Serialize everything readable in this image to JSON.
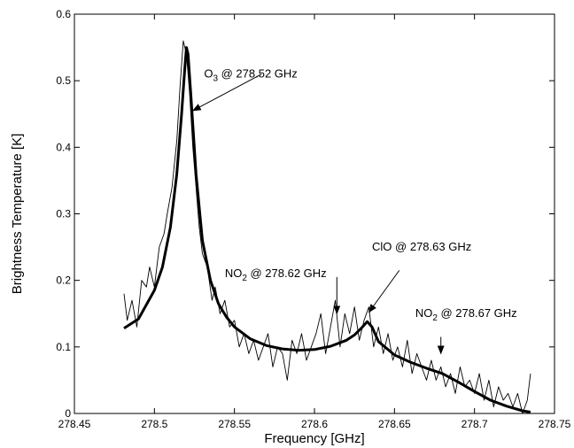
{
  "chart_data": {
    "type": "line",
    "xlabel": "Frequency [GHz]",
    "ylabel": "Brightness Temperature [K]",
    "xlim": [
      278.45,
      278.75
    ],
    "ylim": [
      0,
      0.6
    ],
    "xticks": [
      "278.45",
      "278.5",
      "278.55",
      "278.6",
      "278.65",
      "278.7",
      "278.75"
    ],
    "xtick_values": [
      278.45,
      278.5,
      278.55,
      278.6,
      278.65,
      278.7,
      278.75
    ],
    "yticks": [
      "0",
      "0.1",
      "0.2",
      "0.3",
      "0.4",
      "0.5",
      "0.6"
    ],
    "ytick_values": [
      0,
      0.1,
      0.2,
      0.3,
      0.4,
      0.5,
      0.6
    ],
    "grid": false,
    "colors": {
      "measured": "#000000",
      "fit": "#000000"
    },
    "series": [
      {
        "role": "measured",
        "x": [
          278.481,
          278.483,
          278.486,
          278.489,
          278.492,
          278.495,
          278.497,
          278.5,
          278.503,
          278.506,
          278.508,
          278.511,
          278.514,
          278.516,
          278.518,
          278.52,
          278.522,
          278.524,
          278.526,
          278.528,
          278.53,
          278.533,
          278.536,
          278.538,
          278.541,
          278.544,
          278.547,
          278.55,
          278.553,
          278.556,
          278.559,
          278.562,
          278.565,
          278.568,
          278.571,
          278.574,
          278.577,
          278.58,
          278.583,
          278.586,
          278.589,
          278.592,
          278.595,
          278.598,
          278.601,
          278.604,
          278.607,
          278.61,
          278.613,
          278.616,
          278.619,
          278.622,
          278.625,
          278.628,
          278.631,
          278.634,
          278.637,
          278.64,
          278.643,
          278.646,
          278.649,
          278.652,
          278.655,
          278.658,
          278.661,
          278.664,
          278.667,
          278.67,
          278.673,
          278.676,
          278.679,
          278.682,
          278.685,
          278.688,
          278.691,
          278.694,
          278.697,
          278.7,
          278.703,
          278.706,
          278.709,
          278.712,
          278.715,
          278.718,
          278.721,
          278.724,
          278.727,
          278.73,
          278.733,
          278.735
        ],
        "y": [
          0.18,
          0.14,
          0.17,
          0.13,
          0.2,
          0.19,
          0.22,
          0.19,
          0.25,
          0.27,
          0.3,
          0.34,
          0.41,
          0.49,
          0.56,
          0.54,
          0.48,
          0.4,
          0.34,
          0.28,
          0.24,
          0.22,
          0.17,
          0.19,
          0.15,
          0.17,
          0.13,
          0.14,
          0.1,
          0.12,
          0.09,
          0.11,
          0.08,
          0.1,
          0.12,
          0.07,
          0.1,
          0.09,
          0.05,
          0.11,
          0.09,
          0.12,
          0.08,
          0.1,
          0.12,
          0.15,
          0.09,
          0.13,
          0.17,
          0.1,
          0.15,
          0.12,
          0.16,
          0.11,
          0.14,
          0.16,
          0.1,
          0.13,
          0.09,
          0.12,
          0.08,
          0.1,
          0.07,
          0.11,
          0.06,
          0.09,
          0.07,
          0.05,
          0.08,
          0.05,
          0.07,
          0.04,
          0.06,
          0.03,
          0.07,
          0.04,
          0.05,
          0.03,
          0.06,
          0.02,
          0.05,
          0.01,
          0.04,
          0.02,
          0.03,
          0.01,
          0.03,
          0.0,
          0.02,
          0.06
        ]
      },
      {
        "role": "fit",
        "x": [
          278.481,
          278.49,
          278.5,
          278.505,
          278.51,
          278.514,
          278.517,
          278.519,
          278.52,
          278.521,
          278.523,
          278.526,
          278.53,
          278.535,
          278.54,
          278.545,
          278.55,
          278.56,
          278.57,
          278.58,
          278.59,
          278.6,
          278.61,
          278.62,
          278.625,
          278.63,
          278.633,
          278.636,
          278.64,
          278.65,
          278.66,
          278.67,
          278.68,
          278.69,
          278.7,
          278.71,
          278.72,
          278.73,
          278.735
        ],
        "y": [
          0.128,
          0.142,
          0.185,
          0.22,
          0.28,
          0.36,
          0.45,
          0.52,
          0.55,
          0.54,
          0.47,
          0.36,
          0.26,
          0.2,
          0.165,
          0.145,
          0.13,
          0.112,
          0.102,
          0.097,
          0.095,
          0.096,
          0.101,
          0.11,
          0.118,
          0.13,
          0.138,
          0.13,
          0.108,
          0.088,
          0.077,
          0.068,
          0.06,
          0.047,
          0.033,
          0.02,
          0.011,
          0.004,
          0.002
        ]
      }
    ],
    "annotations": [
      {
        "id": "o3",
        "prefix": "O",
        "sub": "3",
        "suffix": " @ 278.52 GHz",
        "x": 278.531,
        "y": 0.505
      },
      {
        "id": "no2a",
        "prefix": "NO",
        "sub": "2",
        "suffix": " @ 278.62 GHz",
        "x": 278.544,
        "y": 0.205
      },
      {
        "id": "clo",
        "prefix": "ClO",
        "sub": "",
        "suffix": " @ 278.63 GHz",
        "x": 278.636,
        "y": 0.245
      },
      {
        "id": "no2b",
        "prefix": "NO",
        "sub": "2",
        "suffix": " @ 278.67 GHz",
        "x": 278.663,
        "y": 0.145
      }
    ],
    "arrows": [
      {
        "id": "o3",
        "from": [
          278.567,
          0.51
        ],
        "to": [
          278.524,
          0.455
        ]
      },
      {
        "id": "no2a",
        "from": [
          278.614,
          0.205
        ],
        "to": [
          278.614,
          0.15
        ]
      },
      {
        "id": "clo",
        "from": [
          278.653,
          0.215
        ],
        "to": [
          278.634,
          0.152
        ]
      },
      {
        "id": "no2b",
        "from": [
          278.679,
          0.115
        ],
        "to": [
          278.679,
          0.09
        ]
      }
    ]
  }
}
